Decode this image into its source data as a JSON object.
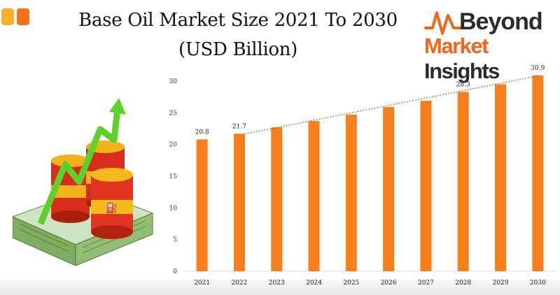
{
  "header": {
    "title_line1": "Base Oil Market Size 2021 To 2030",
    "title_line2": "(USD Billion)"
  },
  "logo": {
    "word1": "Beyond",
    "word2_part1": "Market",
    "word2_part2": "Insights",
    "accent_color": "#f0661a"
  },
  "illustration": {
    "icon": "oil-barrels-money-growth-icon"
  },
  "colors": {
    "bar": "#f77f1b",
    "trend": "#555555",
    "square1": "#f7b02c",
    "square2": "#f2731b"
  },
  "chart_data": {
    "type": "bar",
    "categories": [
      "2021",
      "2022",
      "2023",
      "2024",
      "2025",
      "2026",
      "2027",
      "2028",
      "2029",
      "2030"
    ],
    "values": [
      20.8,
      21.7,
      22.7,
      23.7,
      24.7,
      25.9,
      26.9,
      28.3,
      29.5,
      30.9
    ],
    "data_labels": [
      "20.8",
      "21.7",
      "",
      "",
      "",
      "",
      "",
      "28.3",
      "",
      "30.9"
    ],
    "ylim": [
      0,
      30
    ],
    "yticks": [
      "0",
      "5",
      "10",
      "15",
      "20",
      "25",
      "30"
    ],
    "trendline": {
      "type": "linear",
      "from_category": "2022",
      "to_category": "2030",
      "style": "dotted"
    },
    "grid": false,
    "legend": "none"
  }
}
